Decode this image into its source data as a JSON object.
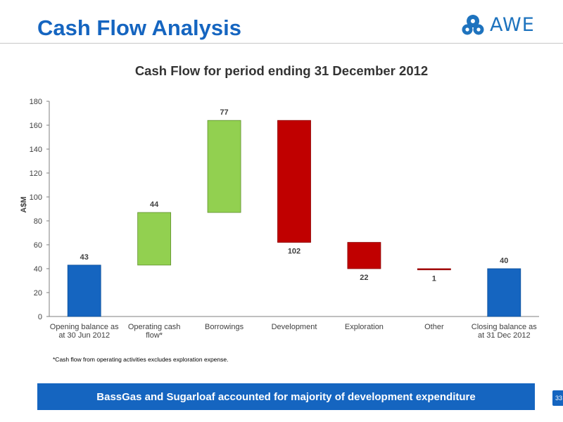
{
  "slide": {
    "title": "Cash Flow Analysis",
    "logo_text": "AWE",
    "footnote": "*Cash flow from operating activities excludes exploration expense.",
    "banner": "BassGas and Sugarloaf accounted for majority of development expenditure",
    "page_number": "33"
  },
  "colors": {
    "brand_blue": "#1565C0",
    "balance": "#1565C0",
    "increase": "#92D050",
    "decrease": "#C00000"
  },
  "chart_data": {
    "type": "bar",
    "subtype": "waterfall",
    "title": "Cash Flow for period ending 31 December 2012",
    "xlabel": "",
    "ylabel": "A$M",
    "ylim": [
      0,
      180
    ],
    "yticks": [
      0,
      20,
      40,
      60,
      80,
      100,
      120,
      140,
      160,
      180
    ],
    "grid": false,
    "legend": "none",
    "categories": [
      [
        "Opening balance as",
        "at 30 Jun 2012"
      ],
      [
        "Operating cash",
        "flow*"
      ],
      [
        "Borrowings"
      ],
      [
        "Development"
      ],
      [
        "Exploration"
      ],
      [
        "Other"
      ],
      [
        "Closing balance as",
        "at 31 Dec 2012"
      ]
    ],
    "bars": [
      {
        "kind": "total",
        "start": 0,
        "end": 43,
        "label": "43"
      },
      {
        "kind": "increase",
        "start": 43,
        "end": 87,
        "label": "44"
      },
      {
        "kind": "increase",
        "start": 87,
        "end": 164,
        "label": "77"
      },
      {
        "kind": "decrease",
        "start": 164,
        "end": 62,
        "label": "102"
      },
      {
        "kind": "decrease",
        "start": 62,
        "end": 40,
        "label": "22"
      },
      {
        "kind": "decrease",
        "start": 40,
        "end": 39,
        "label": "1"
      },
      {
        "kind": "total",
        "start": 0,
        "end": 40,
        "label": "40"
      }
    ]
  }
}
